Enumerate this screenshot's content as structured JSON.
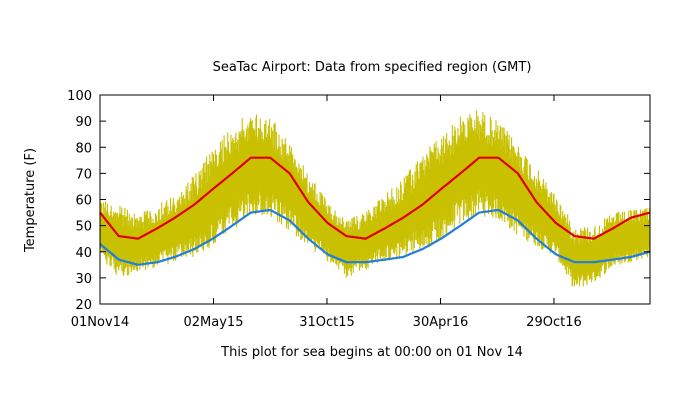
{
  "chart_data": {
    "type": "line",
    "title": "SeaTac Airport:  Data from specified region (GMT)",
    "xlabel": "This plot for sea begins at 00:00 on 01 Nov 14",
    "ylabel": "Temperature (F)",
    "ylim": [
      20,
      100
    ],
    "yticks": [
      20,
      30,
      40,
      50,
      60,
      70,
      80,
      90,
      100
    ],
    "x_start": "2014-11-01",
    "x_end": "2017-04-01",
    "xticks": [
      {
        "date": "2014-11-01",
        "label": "01Nov14"
      },
      {
        "date": "2015-05-02",
        "label": "02May15"
      },
      {
        "date": "2015-10-31",
        "label": "31Oct15"
      },
      {
        "date": "2016-04-30",
        "label": "30Apr16"
      },
      {
        "date": "2016-10-29",
        "label": "29Oct16"
      }
    ],
    "grid": false,
    "series": [
      {
        "color": "#c8c000",
        "style": "observed",
        "x": [
          "2014-11-01",
          "2014-12-01",
          "2015-01-01",
          "2015-02-01",
          "2015-03-01",
          "2015-04-01",
          "2015-05-01",
          "2015-06-01",
          "2015-07-01",
          "2015-08-01",
          "2015-09-01",
          "2015-10-01",
          "2015-11-01",
          "2015-12-01",
          "2016-01-01",
          "2016-02-01",
          "2016-03-01",
          "2016-04-01",
          "2016-05-01",
          "2016-06-01",
          "2016-07-01",
          "2016-08-01",
          "2016-09-01",
          "2016-10-01",
          "2016-11-01",
          "2016-12-01",
          "2017-01-01",
          "2017-02-01",
          "2017-03-01",
          "2017-04-01"
        ],
        "low": [
          38,
          30,
          32,
          34,
          36,
          38,
          42,
          48,
          54,
          53,
          48,
          42,
          36,
          30,
          33,
          36,
          38,
          40,
          44,
          50,
          54,
          52,
          46,
          42,
          38,
          25,
          28,
          34,
          36,
          38
        ],
        "high": [
          60,
          58,
          55,
          58,
          62,
          70,
          80,
          88,
          94,
          92,
          82,
          70,
          60,
          52,
          56,
          62,
          68,
          78,
          85,
          92,
          95,
          90,
          82,
          72,
          62,
          50,
          50,
          55,
          56,
          58
        ]
      },
      {
        "color": "#e00000",
        "style": "normal-high",
        "x": [
          "2014-11-01",
          "2014-12-01",
          "2015-01-01",
          "2015-02-01",
          "2015-03-01",
          "2015-04-01",
          "2015-05-01",
          "2015-06-01",
          "2015-07-01",
          "2015-08-01",
          "2015-09-01",
          "2015-10-01",
          "2015-11-01",
          "2015-12-01",
          "2016-01-01",
          "2016-02-01",
          "2016-03-01",
          "2016-04-01",
          "2016-05-01",
          "2016-06-01",
          "2016-07-01",
          "2016-08-01",
          "2016-09-01",
          "2016-10-01",
          "2016-11-01",
          "2016-12-01",
          "2017-01-01",
          "2017-02-01",
          "2017-03-01",
          "2017-04-01"
        ],
        "values": [
          55,
          46,
          45,
          49,
          53,
          58,
          64,
          70,
          76,
          76,
          70,
          59,
          51,
          46,
          45,
          49,
          53,
          58,
          64,
          70,
          76,
          76,
          70,
          59,
          51,
          46,
          45,
          49,
          53,
          55
        ]
      },
      {
        "color": "#1f7ee0",
        "style": "normal-low",
        "x": [
          "2014-11-01",
          "2014-12-01",
          "2015-01-01",
          "2015-02-01",
          "2015-03-01",
          "2015-04-01",
          "2015-05-01",
          "2015-06-01",
          "2015-07-01",
          "2015-08-01",
          "2015-09-01",
          "2015-10-01",
          "2015-11-01",
          "2015-12-01",
          "2016-01-01",
          "2016-02-01",
          "2016-03-01",
          "2016-04-01",
          "2016-05-01",
          "2016-06-01",
          "2016-07-01",
          "2016-08-01",
          "2016-09-01",
          "2016-10-01",
          "2016-11-01",
          "2016-12-01",
          "2017-01-01",
          "2017-02-01",
          "2017-03-01",
          "2017-04-01"
        ],
        "values": [
          43,
          37,
          35,
          36,
          38,
          41,
          45,
          50,
          55,
          56,
          52,
          45,
          39,
          36,
          36,
          37,
          38,
          41,
          45,
          50,
          55,
          56,
          52,
          45,
          39,
          36,
          36,
          37,
          38,
          40
        ]
      }
    ]
  }
}
